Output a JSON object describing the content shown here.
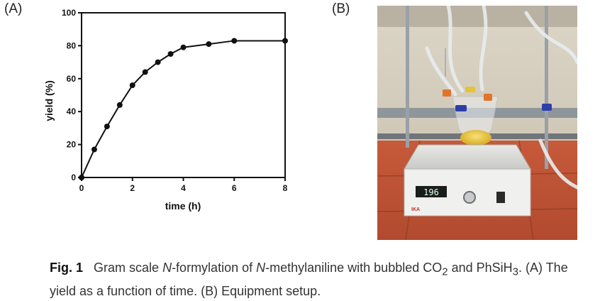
{
  "panels": {
    "a_label": "(A)",
    "b_label": "(B)"
  },
  "chart_data": {
    "type": "line",
    "xlabel": "time (h)",
    "ylabel": "yield (%)",
    "xlim": [
      0,
      8
    ],
    "ylim": [
      0,
      100
    ],
    "xticks": [
      0,
      2,
      4,
      6,
      8
    ],
    "yticks": [
      0,
      20,
      40,
      60,
      80,
      100
    ],
    "grid": false,
    "series": [
      {
        "x": [
          0,
          0.5,
          1,
          1.5,
          2,
          2.5,
          3,
          3.5,
          4,
          5,
          6,
          8
        ],
        "y": [
          0,
          17,
          31,
          44,
          56,
          64,
          70,
          75,
          79,
          81,
          83,
          83
        ]
      }
    ]
  },
  "photo": {
    "display_readout": "196",
    "brand_mark": "IKA"
  },
  "caption": {
    "fig": "Fig. 1",
    "t1": "Gram scale ",
    "n1": "N",
    "t2": "-formylation of ",
    "n2": "N",
    "t3": "-methylaniline with bubbled CO",
    "sub1": "2",
    "t4": "and PhSiH",
    "sub2": "3",
    "t5": ". (A) The yield as a function of time. (B) Equipment setup."
  }
}
